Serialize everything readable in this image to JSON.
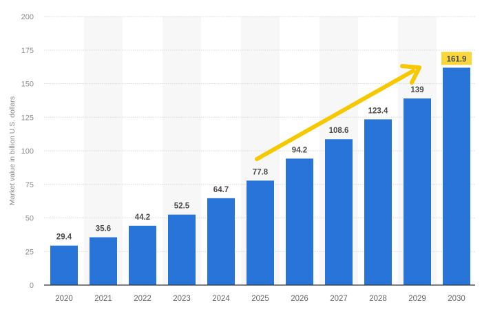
{
  "chart_data": {
    "type": "bar",
    "title": "",
    "xlabel": "",
    "ylabel": "Market value in billion U.S. dollars",
    "ylim": [
      0,
      200
    ],
    "yticks": [
      0,
      25,
      50,
      75,
      100,
      125,
      150,
      175,
      200
    ],
    "grid": true,
    "categories": [
      "2020",
      "2021",
      "2022",
      "2023",
      "2024",
      "2025",
      "2026",
      "2027",
      "2028",
      "2029",
      "2030"
    ],
    "values": [
      29.4,
      35.6,
      44.2,
      52.5,
      64.7,
      77.8,
      94.2,
      108.6,
      123.4,
      139,
      161.9
    ],
    "value_labels": [
      "29.4",
      "35.6",
      "44.2",
      "52.5",
      "64.7",
      "77.8",
      "94.2",
      "108.6",
      "123.4",
      "139",
      "161.9"
    ],
    "highlighted_label_index": 10,
    "annotations": [
      {
        "type": "arrow",
        "description": "upward trend arrow from 2025 to 2029",
        "color": "#f5c800"
      }
    ]
  },
  "colors": {
    "bar": "#2874d8",
    "highlight_bg": "#f9d63a",
    "arrow": "#f5c800",
    "band": "#f7f7f7",
    "grid": "#d6d6d6",
    "axis": "#333333"
  }
}
